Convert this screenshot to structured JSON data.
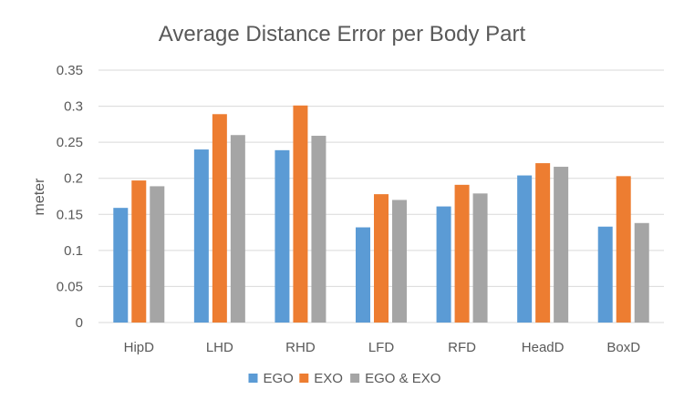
{
  "chart_data": {
    "type": "bar",
    "title": "Average Distance Error per Body Part",
    "xlabel": "",
    "ylabel": "meter",
    "ylim": [
      0,
      0.35
    ],
    "yticks": [
      "0",
      "0.05",
      "0.1",
      "0.15",
      "0.2",
      "0.25",
      "0.3",
      "0.35"
    ],
    "categories": [
      "HipD",
      "LHD",
      "RHD",
      "LFD",
      "RFD",
      "HeadD",
      "BoxD"
    ],
    "series": [
      {
        "name": "EGO",
        "color": "#5b9bd5",
        "values": [
          0.159,
          0.24,
          0.239,
          0.132,
          0.161,
          0.204,
          0.133
        ]
      },
      {
        "name": "EXO",
        "color": "#ed7d31",
        "values": [
          0.197,
          0.289,
          0.301,
          0.178,
          0.191,
          0.221,
          0.203
        ]
      },
      {
        "name": "EGO & EXO",
        "color": "#a5a5a5",
        "values": [
          0.189,
          0.26,
          0.259,
          0.17,
          0.179,
          0.216,
          0.138
        ]
      }
    ],
    "grid": true,
    "legend_position": "bottom"
  }
}
